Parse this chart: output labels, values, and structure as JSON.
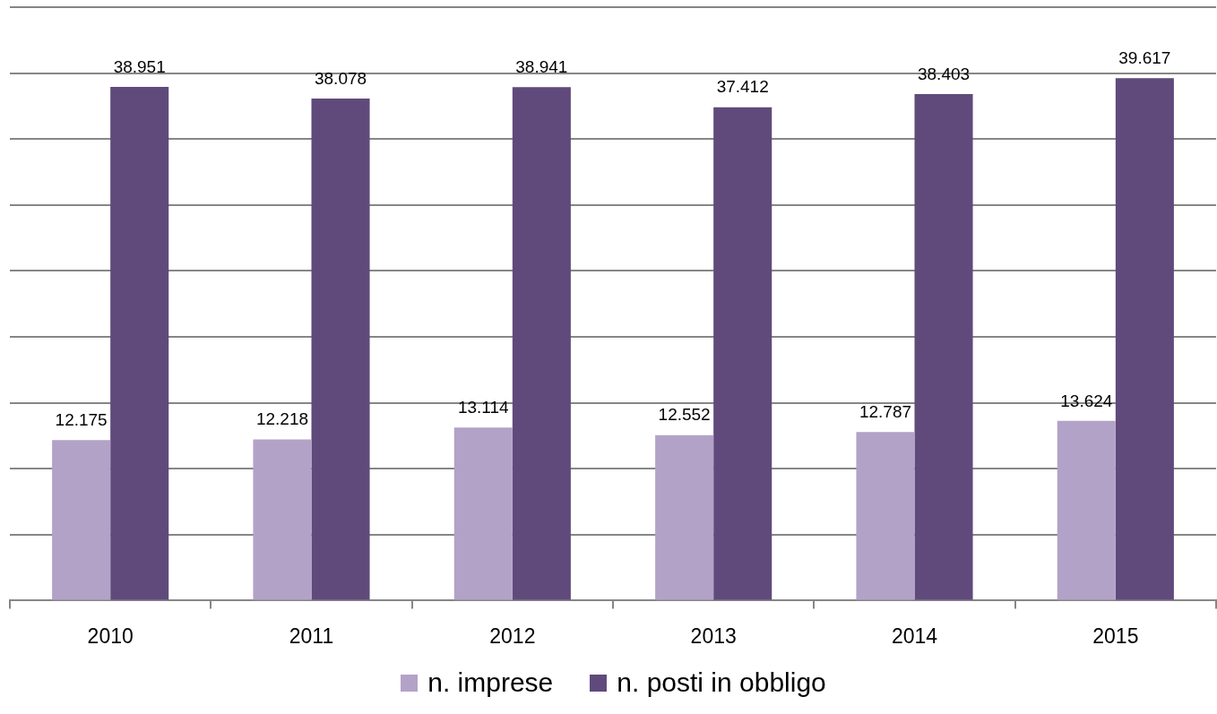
{
  "chart_data": {
    "type": "bar",
    "categories": [
      "2010",
      "2011",
      "2012",
      "2013",
      "2014",
      "2015"
    ],
    "series": [
      {
        "name": "n. imprese",
        "color": "#b3a2c7",
        "values": [
          12175,
          12218,
          13114,
          12552,
          12787,
          13624
        ],
        "value_labels": [
          "12.175",
          "12.218",
          "13.114",
          "12.552",
          "12.787",
          "13.624"
        ]
      },
      {
        "name": "n. posti in obbligo",
        "color": "#604a7b",
        "values": [
          38951,
          38078,
          38941,
          37412,
          38403,
          39617
        ],
        "value_labels": [
          "38.951",
          "38.078",
          "38.941",
          "37.412",
          "38.403",
          "39.617"
        ]
      }
    ],
    "ylim": [
      0,
      45000
    ],
    "yticks": [
      {
        "value": 0,
        "label": null
      },
      {
        "value": 5000,
        "label": null
      },
      {
        "value": 10000,
        "label": null
      },
      {
        "value": 15000,
        "label": null
      },
      {
        "value": 20000,
        "label": null
      },
      {
        "value": 25000,
        "label": null
      },
      {
        "value": 30000,
        "label": null
      },
      {
        "value": 35000,
        "label": null
      },
      {
        "value": 40000,
        "label": null
      }
    ],
    "grid": "y",
    "legend": "bottom",
    "tick_labels": "x"
  }
}
